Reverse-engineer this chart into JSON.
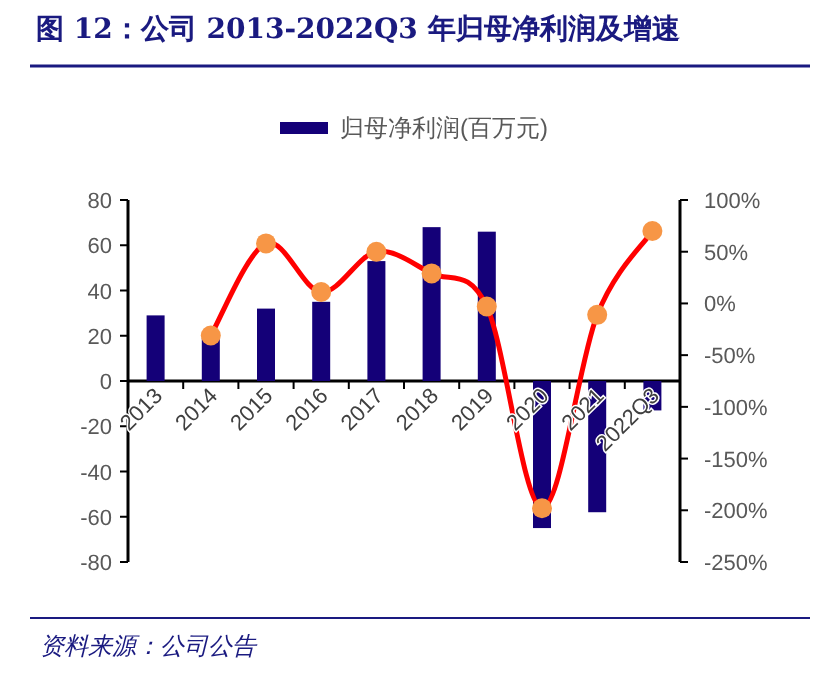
{
  "chart_data": {
    "type": "bar",
    "title": "图 12：公司 2013-2022Q3 年归母净利润及增速",
    "categories": [
      "2013",
      "2014",
      "2015",
      "2016",
      "2017",
      "2018",
      "2019",
      "2020",
      "2021",
      "2022Q3"
    ],
    "series": [
      {
        "name": "归母净利润(百万元)",
        "color": "#140078",
        "values": [
          29,
          19,
          32,
          35,
          53,
          68,
          66,
          -65,
          -58,
          -13
        ]
      },
      {
        "type": "line",
        "axis": "y2",
        "color": "#ff0000",
        "marker": "circle",
        "colors": [
          null,
          "#f79646",
          "#f79646",
          "#f79646",
          "#f79646",
          "#f79646",
          "#f79646",
          "#f79646",
          "#f79646",
          "#f79646"
        ],
        "values": [
          null,
          -31,
          58,
          11,
          50,
          29,
          -3,
          -198,
          -11,
          70
        ]
      }
    ],
    "ylim": [
      -80,
      80
    ],
    "yticks": [
      -80,
      -60,
      -40,
      -20,
      0,
      20,
      40,
      60,
      80
    ],
    "y2lim": [
      -250,
      100
    ],
    "y2ticks": [
      {
        "value": -250,
        "label": "-250%"
      },
      {
        "value": -200,
        "label": "-200%"
      },
      {
        "value": -150,
        "label": "-150%"
      },
      {
        "value": -100,
        "label": "-100%"
      },
      {
        "value": -50,
        "label": "-50%"
      },
      {
        "value": 0,
        "label": "0%"
      },
      {
        "value": 50,
        "label": "50%"
      },
      {
        "value": 100,
        "label": "100%"
      }
    ],
    "legend": "top",
    "grid": false,
    "annotations": [
      "资料来源：公司公告"
    ]
  }
}
